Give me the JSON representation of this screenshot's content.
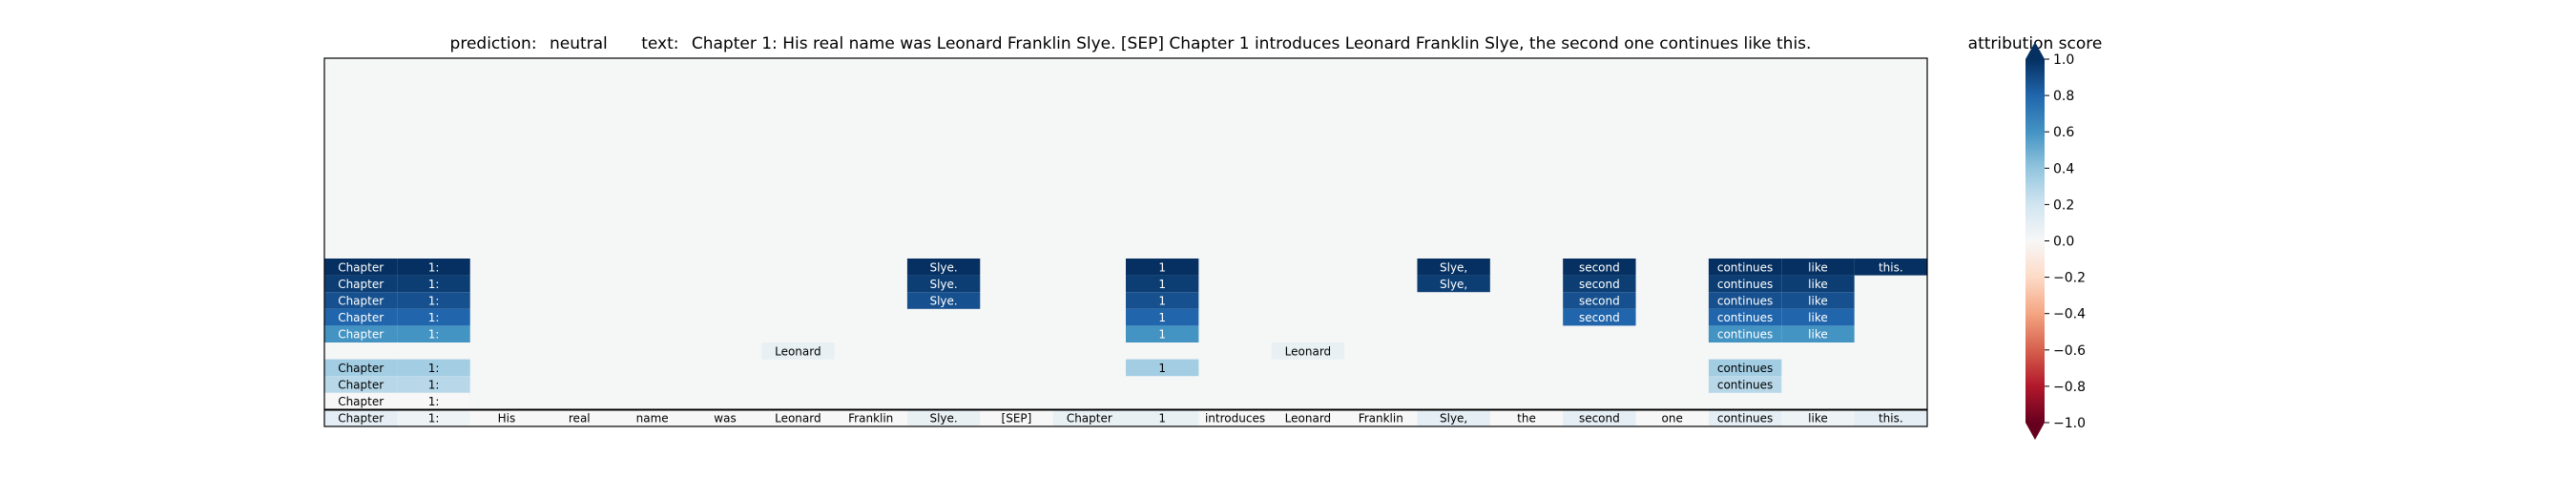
{
  "chart_data": {
    "type": "heatmap",
    "title": {
      "prediction_label": "prediction:",
      "prediction": "neutral",
      "text_label": "text:",
      "text": "Chapter 1: His real name was Leonard Franklin Slye. [SEP] Chapter 1 introduces Leonard Franklin Slye, the second one continues like this."
    },
    "tokens": [
      "Chapter",
      "1:",
      "His",
      "real",
      "name",
      "was",
      "Leonard",
      "Franklin",
      "Slye.",
      "[SEP]",
      "Chapter",
      "1",
      "introduces",
      "Leonard",
      "Franklin",
      "Slye,",
      "the",
      "second",
      "one",
      "continues",
      "like",
      "this."
    ],
    "rows": [
      {
        "token_indices": [
          0,
          1,
          8,
          11,
          15,
          17,
          19,
          20,
          21
        ],
        "values": [
          1.0,
          1.0,
          1.0,
          1.0,
          1.0,
          1.0,
          1.0,
          1.0,
          1.0
        ]
      },
      {
        "token_indices": [
          0,
          1,
          8,
          11,
          15,
          17,
          19,
          20
        ],
        "values": [
          0.95,
          0.95,
          0.95,
          0.95,
          0.95,
          0.95,
          0.95,
          0.95
        ]
      },
      {
        "token_indices": [
          0,
          1,
          8,
          11,
          17,
          19,
          20
        ],
        "values": [
          0.88,
          0.88,
          0.88,
          0.88,
          0.88,
          0.88,
          0.88
        ]
      },
      {
        "token_indices": [
          0,
          1,
          11,
          17,
          19,
          20
        ],
        "values": [
          0.8,
          0.8,
          0.8,
          0.8,
          0.8,
          0.8
        ]
      },
      {
        "token_indices": [
          0,
          1,
          11,
          19,
          20
        ],
        "values": [
          0.6,
          0.6,
          0.6,
          0.6,
          0.6
        ]
      },
      {
        "token_indices": [
          6,
          13
        ],
        "values": [
          0.08,
          0.08
        ]
      },
      {
        "token_indices": [
          0,
          1,
          11,
          19
        ],
        "values": [
          0.35,
          0.35,
          0.35,
          0.35
        ]
      },
      {
        "token_indices": [
          0,
          1,
          19
        ],
        "values": [
          0.28,
          0.28,
          0.28
        ]
      },
      {
        "token_indices": [
          0,
          1
        ],
        "values": [
          0.0,
          0.0
        ]
      },
      {
        "token_indices": [
          0,
          1,
          2,
          3,
          4,
          5,
          6,
          7,
          8,
          9,
          10,
          11,
          12,
          13,
          14,
          15,
          16,
          17,
          18,
          19,
          20,
          21
        ],
        "values": [
          0.1,
          0.05,
          0.0,
          0.0,
          0.0,
          0.0,
          0.0,
          0.0,
          0.08,
          0.0,
          0.08,
          0.08,
          0.0,
          0.0,
          0.0,
          0.1,
          0.0,
          0.1,
          0.0,
          0.1,
          0.05,
          0.1
        ]
      }
    ],
    "colorbar": {
      "label": "attribution score",
      "min": -1.0,
      "max": 1.0,
      "ticks": [
        1.0,
        0.8,
        0.6,
        0.4,
        0.2,
        0.0,
        -0.2,
        -0.4,
        -0.6,
        -0.8,
        -1.0
      ],
      "tick_labels": [
        "1.0",
        "0.8",
        "0.6",
        "0.4",
        "0.2",
        "0.0",
        "−0.2",
        "−0.4",
        "−0.6",
        "−0.8",
        "−1.0"
      ],
      "colormap": "RdBu",
      "extend": "both"
    },
    "colors": {
      "background": "#f5f6f6",
      "rdbu": [
        "#67001f",
        "#b2182b",
        "#d6604d",
        "#f4a582",
        "#fddbc7",
        "#f7f7f7",
        "#d1e5f0",
        "#92c5de",
        "#4393c3",
        "#2166ac",
        "#053061"
      ]
    }
  }
}
